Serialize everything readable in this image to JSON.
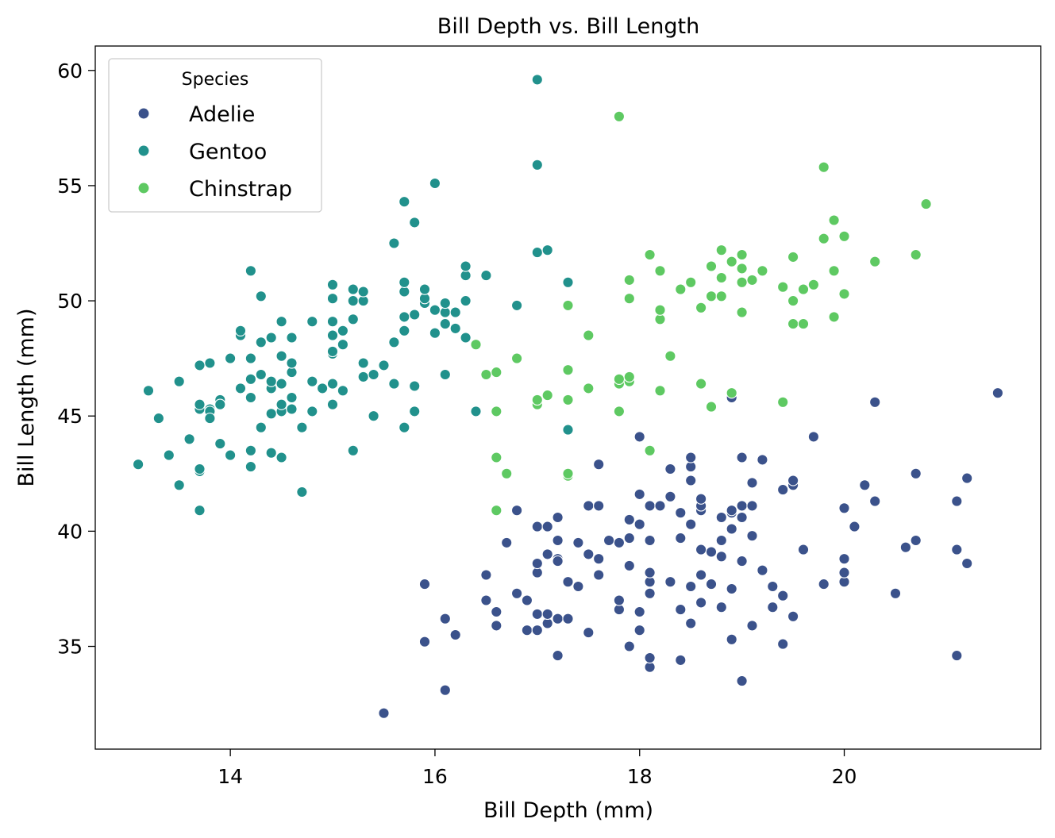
{
  "chart_data": {
    "type": "scatter",
    "title": "Bill Depth vs. Bill Length",
    "xlabel": "Bill Depth (mm)",
    "ylabel": "Bill Length (mm)",
    "xlim": [
      12.68,
      21.92
    ],
    "ylim": [
      30.54,
      61.06
    ],
    "xticks": [
      14,
      16,
      18,
      20
    ],
    "yticks": [
      35,
      40,
      45,
      50,
      55,
      60
    ],
    "grid": false,
    "legend": {
      "title": "Species",
      "placement": "top-left"
    },
    "series": [
      {
        "name": "Adelie",
        "color": "#3b528b",
        "points": [
          [
            15.5,
            32.1
          ],
          [
            16.1,
            33.1
          ],
          [
            18.1,
            34.1
          ],
          [
            18.4,
            34.4
          ],
          [
            17.2,
            34.6
          ],
          [
            21.1,
            34.6
          ],
          [
            18.1,
            34.5
          ],
          [
            15.9,
            35.2
          ],
          [
            16.2,
            35.5
          ],
          [
            17.5,
            35.6
          ],
          [
            17.9,
            35.0
          ],
          [
            18.9,
            35.3
          ],
          [
            19.4,
            35.1
          ],
          [
            16.9,
            35.7
          ],
          [
            17.0,
            35.7
          ],
          [
            17.1,
            36.0
          ],
          [
            16.6,
            35.9
          ],
          [
            18.0,
            35.7
          ],
          [
            18.5,
            36.0
          ],
          [
            19.1,
            35.9
          ],
          [
            19.5,
            36.3
          ],
          [
            16.1,
            36.2
          ],
          [
            17.0,
            36.4
          ],
          [
            17.1,
            36.4
          ],
          [
            17.2,
            36.2
          ],
          [
            17.3,
            36.2
          ],
          [
            16.6,
            36.5
          ],
          [
            17.8,
            36.6
          ],
          [
            18.0,
            36.5
          ],
          [
            18.4,
            36.6
          ],
          [
            19.3,
            36.7
          ],
          [
            16.5,
            37.0
          ],
          [
            16.9,
            37.0
          ],
          [
            17.8,
            37.0
          ],
          [
            18.6,
            36.9
          ],
          [
            18.8,
            36.7
          ],
          [
            19.4,
            37.2
          ],
          [
            20.5,
            37.3
          ],
          [
            16.8,
            37.3
          ],
          [
            18.3,
            37.8
          ],
          [
            18.1,
            37.8
          ],
          [
            19.8,
            37.7
          ],
          [
            20.0,
            37.8
          ],
          [
            15.9,
            37.7
          ],
          [
            16.5,
            38.1
          ],
          [
            17.0,
            38.2
          ],
          [
            17.2,
            38.8
          ],
          [
            17.6,
            38.1
          ],
          [
            17.9,
            38.5
          ],
          [
            18.1,
            38.2
          ],
          [
            18.5,
            37.6
          ],
          [
            18.6,
            38.1
          ],
          [
            18.7,
            37.7
          ],
          [
            18.9,
            37.5
          ],
          [
            19.0,
            38.7
          ],
          [
            19.2,
            38.3
          ],
          [
            19.3,
            37.6
          ],
          [
            20.0,
            38.2
          ],
          [
            20.0,
            38.8
          ],
          [
            17.0,
            38.6
          ],
          [
            17.1,
            39.0
          ],
          [
            17.2,
            38.7
          ],
          [
            17.3,
            37.8
          ],
          [
            17.5,
            39.0
          ],
          [
            17.6,
            38.8
          ],
          [
            17.8,
            39.5
          ],
          [
            17.9,
            39.7
          ],
          [
            18.1,
            39.6
          ],
          [
            18.4,
            39.7
          ],
          [
            18.6,
            39.2
          ],
          [
            18.7,
            39.1
          ],
          [
            18.8,
            38.9
          ],
          [
            18.8,
            39.6
          ],
          [
            18.9,
            40.1
          ],
          [
            19.0,
            40.6
          ],
          [
            19.1,
            39.8
          ],
          [
            19.6,
            39.2
          ],
          [
            20.6,
            39.3
          ],
          [
            20.7,
            39.6
          ],
          [
            21.1,
            39.2
          ],
          [
            21.2,
            38.6
          ],
          [
            16.7,
            39.5
          ],
          [
            17.4,
            39.5
          ],
          [
            17.7,
            39.6
          ],
          [
            17.2,
            39.6
          ],
          [
            16.8,
            40.9
          ],
          [
            17.0,
            40.2
          ],
          [
            17.1,
            40.2
          ],
          [
            17.2,
            40.6
          ],
          [
            17.5,
            41.1
          ],
          [
            17.6,
            41.1
          ],
          [
            17.9,
            40.5
          ],
          [
            18.0,
            40.3
          ],
          [
            18.0,
            41.6
          ],
          [
            18.1,
            41.1
          ],
          [
            18.2,
            41.1
          ],
          [
            18.3,
            41.5
          ],
          [
            18.4,
            40.8
          ],
          [
            18.5,
            40.3
          ],
          [
            18.6,
            40.9
          ],
          [
            18.6,
            41.1
          ],
          [
            18.6,
            41.4
          ],
          [
            18.8,
            40.6
          ],
          [
            18.9,
            40.8
          ],
          [
            18.9,
            40.9
          ],
          [
            19.0,
            41.1
          ],
          [
            19.1,
            41.1
          ],
          [
            19.1,
            42.1
          ],
          [
            19.4,
            41.8
          ],
          [
            19.5,
            42.0
          ],
          [
            19.5,
            42.2
          ],
          [
            20.0,
            41.0
          ],
          [
            20.1,
            40.2
          ],
          [
            20.2,
            42.0
          ],
          [
            20.3,
            41.3
          ],
          [
            20.7,
            42.5
          ],
          [
            21.1,
            41.3
          ],
          [
            21.2,
            42.3
          ],
          [
            18.3,
            42.7
          ],
          [
            18.5,
            42.2
          ],
          [
            18.5,
            42.8
          ],
          [
            18.5,
            43.2
          ],
          [
            19.0,
            43.2
          ],
          [
            19.2,
            43.1
          ],
          [
            17.6,
            42.9
          ],
          [
            18.0,
            44.1
          ],
          [
            18.9,
            45.8
          ],
          [
            20.3,
            45.6
          ],
          [
            19.7,
            44.1
          ],
          [
            21.5,
            46.0
          ],
          [
            19.0,
            33.5
          ],
          [
            17.4,
            37.6
          ],
          [
            18.1,
            37.3
          ]
        ]
      },
      {
        "name": "Gentoo",
        "color": "#21918c",
        "points": [
          [
            13.1,
            42.9
          ],
          [
            13.2,
            46.1
          ],
          [
            13.3,
            44.9
          ],
          [
            13.4,
            43.3
          ],
          [
            13.5,
            42.0
          ],
          [
            13.5,
            46.5
          ],
          [
            13.6,
            44.0
          ],
          [
            13.7,
            40.9
          ],
          [
            13.7,
            42.6
          ],
          [
            13.7,
            42.7
          ],
          [
            13.7,
            45.3
          ],
          [
            13.7,
            45.5
          ],
          [
            13.7,
            47.2
          ],
          [
            13.8,
            45.3
          ],
          [
            13.8,
            45.2
          ],
          [
            13.8,
            44.9
          ],
          [
            13.8,
            47.3
          ],
          [
            13.9,
            45.7
          ],
          [
            13.9,
            45.5
          ],
          [
            13.9,
            43.8
          ],
          [
            14.0,
            43.3
          ],
          [
            14.0,
            47.5
          ],
          [
            14.1,
            46.2
          ],
          [
            14.1,
            48.5
          ],
          [
            14.1,
            48.7
          ],
          [
            14.2,
            42.8
          ],
          [
            14.2,
            43.5
          ],
          [
            14.2,
            45.8
          ],
          [
            14.2,
            46.6
          ],
          [
            14.2,
            47.5
          ],
          [
            14.2,
            51.3
          ],
          [
            14.3,
            46.8
          ],
          [
            14.3,
            48.2
          ],
          [
            14.3,
            44.5
          ],
          [
            14.3,
            50.2
          ],
          [
            14.4,
            43.4
          ],
          [
            14.4,
            45.1
          ],
          [
            14.4,
            46.2
          ],
          [
            14.4,
            46.5
          ],
          [
            14.4,
            48.4
          ],
          [
            14.5,
            43.2
          ],
          [
            14.5,
            45.2
          ],
          [
            14.5,
            45.5
          ],
          [
            14.5,
            46.4
          ],
          [
            14.5,
            47.6
          ],
          [
            14.5,
            49.1
          ],
          [
            14.6,
            45.3
          ],
          [
            14.6,
            45.8
          ],
          [
            14.6,
            46.9
          ],
          [
            14.6,
            47.3
          ],
          [
            14.6,
            48.4
          ],
          [
            14.7,
            41.7
          ],
          [
            14.7,
            44.5
          ],
          [
            14.8,
            45.2
          ],
          [
            14.8,
            46.5
          ],
          [
            14.8,
            49.1
          ],
          [
            14.9,
            46.2
          ],
          [
            15.0,
            45.5
          ],
          [
            15.0,
            46.4
          ],
          [
            15.0,
            47.7
          ],
          [
            15.0,
            47.8
          ],
          [
            15.0,
            48.5
          ],
          [
            15.0,
            49.1
          ],
          [
            15.0,
            50.1
          ],
          [
            15.0,
            50.7
          ],
          [
            15.1,
            46.1
          ],
          [
            15.1,
            48.1
          ],
          [
            15.1,
            48.7
          ],
          [
            15.2,
            43.5
          ],
          [
            15.2,
            49.2
          ],
          [
            15.2,
            50.0
          ],
          [
            15.2,
            50.5
          ],
          [
            15.3,
            46.7
          ],
          [
            15.3,
            47.3
          ],
          [
            15.3,
            50.0
          ],
          [
            15.3,
            50.4
          ],
          [
            15.4,
            45.0
          ],
          [
            15.4,
            46.8
          ],
          [
            15.5,
            47.2
          ],
          [
            15.6,
            46.4
          ],
          [
            15.6,
            48.2
          ],
          [
            15.6,
            52.5
          ],
          [
            15.7,
            44.5
          ],
          [
            15.7,
            48.7
          ],
          [
            15.7,
            49.3
          ],
          [
            15.7,
            50.4
          ],
          [
            15.7,
            50.8
          ],
          [
            15.7,
            54.3
          ],
          [
            15.8,
            45.2
          ],
          [
            15.8,
            46.3
          ],
          [
            15.8,
            49.4
          ],
          [
            15.8,
            53.4
          ],
          [
            15.9,
            49.9
          ],
          [
            15.9,
            50.1
          ],
          [
            15.9,
            50.5
          ],
          [
            16.0,
            48.6
          ],
          [
            16.0,
            49.6
          ],
          [
            16.0,
            55.1
          ],
          [
            16.1,
            46.8
          ],
          [
            16.1,
            49.0
          ],
          [
            16.1,
            49.5
          ],
          [
            16.1,
            49.9
          ],
          [
            16.2,
            48.8
          ],
          [
            16.2,
            49.5
          ],
          [
            16.3,
            48.4
          ],
          [
            16.3,
            50.0
          ],
          [
            16.3,
            51.1
          ],
          [
            16.3,
            51.5
          ],
          [
            16.4,
            45.2
          ],
          [
            16.5,
            51.1
          ],
          [
            16.8,
            49.8
          ],
          [
            17.0,
            52.1
          ],
          [
            17.0,
            55.9
          ],
          [
            17.0,
            59.6
          ],
          [
            17.1,
            52.2
          ],
          [
            17.3,
            44.4
          ],
          [
            17.3,
            50.8
          ]
        ]
      },
      {
        "name": "Chinstrap",
        "color": "#5ec962",
        "points": [
          [
            16.4,
            48.1
          ],
          [
            16.5,
            46.8
          ],
          [
            16.6,
            40.9
          ],
          [
            16.6,
            43.2
          ],
          [
            16.6,
            45.2
          ],
          [
            16.6,
            46.9
          ],
          [
            16.7,
            42.5
          ],
          [
            16.8,
            47.5
          ],
          [
            17.0,
            45.5
          ],
          [
            17.0,
            45.7
          ],
          [
            17.1,
            45.9
          ],
          [
            17.3,
            42.4
          ],
          [
            17.3,
            42.5
          ],
          [
            17.3,
            45.7
          ],
          [
            17.3,
            47.0
          ],
          [
            17.3,
            49.8
          ],
          [
            17.5,
            46.2
          ],
          [
            17.5,
            48.5
          ],
          [
            17.8,
            45.2
          ],
          [
            17.8,
            46.4
          ],
          [
            17.8,
            46.6
          ],
          [
            17.8,
            58.0
          ],
          [
            17.9,
            46.5
          ],
          [
            17.9,
            46.7
          ],
          [
            17.9,
            50.1
          ],
          [
            17.9,
            50.9
          ],
          [
            18.1,
            43.5
          ],
          [
            18.1,
            52.0
          ],
          [
            18.2,
            46.1
          ],
          [
            18.2,
            49.2
          ],
          [
            18.2,
            49.6
          ],
          [
            18.2,
            51.3
          ],
          [
            18.3,
            47.6
          ],
          [
            18.4,
            50.5
          ],
          [
            18.5,
            50.8
          ],
          [
            18.6,
            46.4
          ],
          [
            18.6,
            49.7
          ],
          [
            18.7,
            45.4
          ],
          [
            18.7,
            50.2
          ],
          [
            18.7,
            51.5
          ],
          [
            18.8,
            50.2
          ],
          [
            18.8,
            51.0
          ],
          [
            18.8,
            52.2
          ],
          [
            18.9,
            46.0
          ],
          [
            18.9,
            51.7
          ],
          [
            19.0,
            49.5
          ],
          [
            19.0,
            50.8
          ],
          [
            19.0,
            51.4
          ],
          [
            19.0,
            52.0
          ],
          [
            19.1,
            50.9
          ],
          [
            19.2,
            51.3
          ],
          [
            19.4,
            45.6
          ],
          [
            19.4,
            50.6
          ],
          [
            19.5,
            49.0
          ],
          [
            19.5,
            50.0
          ],
          [
            19.5,
            51.9
          ],
          [
            19.6,
            49.0
          ],
          [
            19.6,
            50.5
          ],
          [
            19.7,
            50.7
          ],
          [
            19.8,
            52.7
          ],
          [
            19.8,
            55.8
          ],
          [
            19.9,
            49.3
          ],
          [
            19.9,
            51.3
          ],
          [
            19.9,
            53.5
          ],
          [
            20.0,
            50.3
          ],
          [
            20.0,
            52.8
          ],
          [
            20.3,
            51.7
          ],
          [
            20.7,
            52.0
          ],
          [
            20.8,
            54.2
          ]
        ]
      }
    ]
  }
}
